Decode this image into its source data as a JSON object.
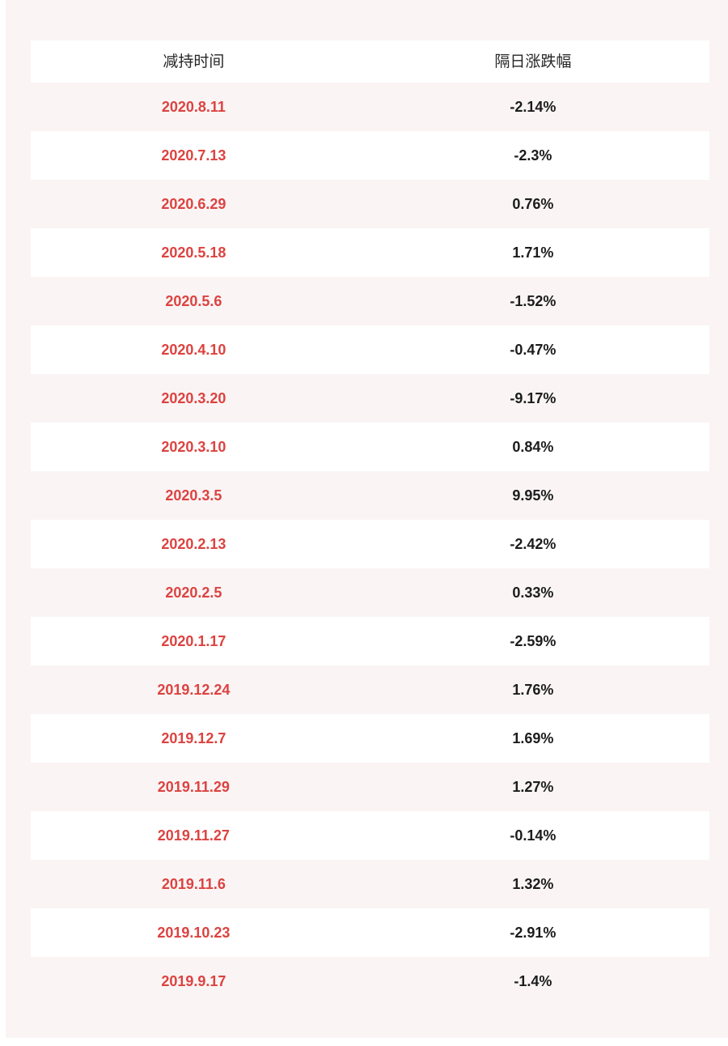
{
  "page": {
    "background_color": "#faf4f5",
    "edge_strip_color": "#ffffff"
  },
  "colors": {
    "page_bg": "#faf4f5",
    "edge_strip": "#ffffff",
    "row_white": "#ffffff",
    "row_alt": "#faf4f5",
    "date_text": "#dc4340",
    "value_text": "#1c1c1c",
    "header_text": "#262626"
  },
  "chart_data": {
    "type": "table",
    "title": "",
    "columns": [
      "减持时间",
      "隔日涨跌幅"
    ],
    "rows": [
      [
        "2020.8.11",
        "-2.14%"
      ],
      [
        "2020.7.13",
        "-2.3%"
      ],
      [
        "2020.6.29",
        "0.76%"
      ],
      [
        "2020.5.18",
        "1.71%"
      ],
      [
        "2020.5.6",
        "-1.52%"
      ],
      [
        "2020.4.10",
        "-0.47%"
      ],
      [
        "2020.3.20",
        "-9.17%"
      ],
      [
        "2020.3.10",
        "0.84%"
      ],
      [
        "2020.3.5",
        "9.95%"
      ],
      [
        "2020.2.13",
        "-2.42%"
      ],
      [
        "2020.2.5",
        "0.33%"
      ],
      [
        "2020.1.17",
        "-2.59%"
      ],
      [
        "2019.12.24",
        "1.76%"
      ],
      [
        "2019.12.7",
        "1.69%"
      ],
      [
        "2019.11.29",
        "1.27%"
      ],
      [
        "2019.11.27",
        "-0.14%"
      ],
      [
        "2019.11.6",
        "1.32%"
      ],
      [
        "2019.10.23",
        "-2.91%"
      ],
      [
        "2019.9.17",
        "-1.4%"
      ]
    ],
    "dates": [
      "2020.8.11",
      "2020.7.13",
      "2020.6.29",
      "2020.5.18",
      "2020.5.6",
      "2020.4.10",
      "2020.3.20",
      "2020.3.10",
      "2020.3.5",
      "2020.2.13",
      "2020.2.5",
      "2020.1.17",
      "2019.12.24",
      "2019.12.7",
      "2019.11.29",
      "2019.11.27",
      "2019.11.6",
      "2019.10.23",
      "2019.9.17"
    ],
    "change_pct": [
      -2.14,
      -2.3,
      0.76,
      1.71,
      -1.52,
      -0.47,
      -9.17,
      0.84,
      9.95,
      -2.42,
      0.33,
      -2.59,
      1.76,
      1.69,
      1.27,
      -0.14,
      1.32,
      -2.91,
      -1.4
    ]
  }
}
